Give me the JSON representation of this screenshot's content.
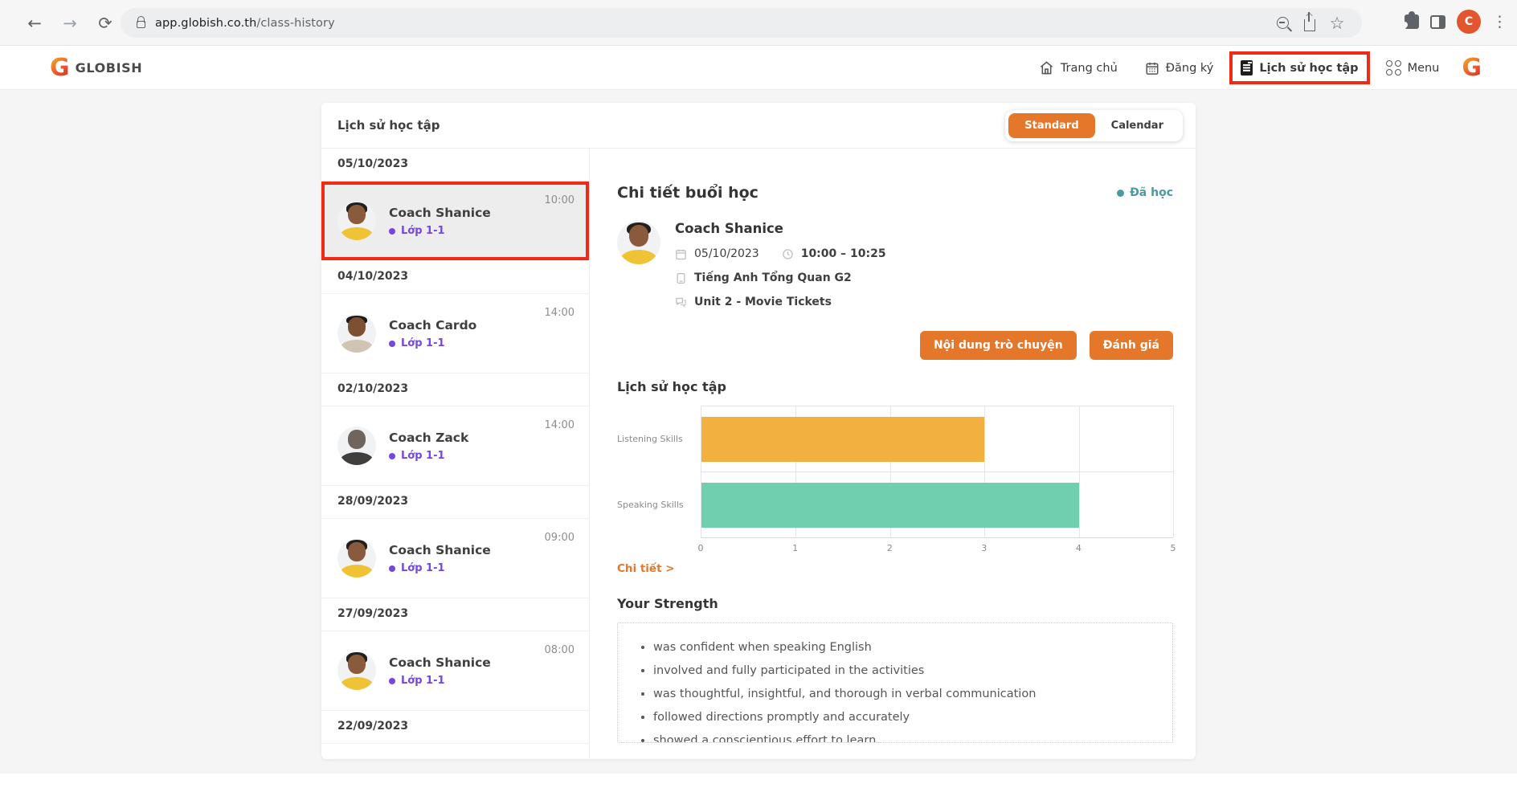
{
  "theme": {
    "accent_orange": "#E5772B",
    "status_teal": "#4A9BA1",
    "class_purple": "#7646E3",
    "annotation_red": "#EE2B16"
  },
  "browser": {
    "url_domain": "app.globish.co.th",
    "url_path": "/class-history",
    "profile_letter": "C",
    "icons": {
      "back": "←",
      "forward": "→",
      "reload": "⟳",
      "bookmark": "☆",
      "overflow": "⋮"
    }
  },
  "header": {
    "brand_mark": "G",
    "brand": "GLOBISH",
    "nav": [
      {
        "label": "Trang chủ"
      },
      {
        "label": "Đăng ký"
      },
      {
        "label": "Lịch sử học tập"
      },
      {
        "label": "Menu"
      }
    ],
    "profile_mark": "G"
  },
  "panel": {
    "title": "Lịch sử học tập",
    "toggle": {
      "standard": "Standard",
      "calendar": "Calendar",
      "selected": "Standard"
    },
    "groups": [
      {
        "date": "05/10/2023",
        "item": {
          "coach": "Coach Shanice",
          "klass": "Lớp 1-1",
          "time": "10:00"
        }
      },
      {
        "date": "04/10/2023",
        "item": {
          "coach": "Coach Cardo",
          "klass": "Lớp 1-1",
          "time": "14:00"
        }
      },
      {
        "date": "02/10/2023",
        "item": {
          "coach": "Coach Zack",
          "klass": "Lớp 1-1",
          "time": "14:00"
        }
      },
      {
        "date": "28/09/2023",
        "item": {
          "coach": "Coach Shanice",
          "klass": "Lớp 1-1",
          "time": "09:00"
        }
      },
      {
        "date": "27/09/2023",
        "item": {
          "coach": "Coach Shanice",
          "klass": "Lớp 1-1",
          "time": "08:00"
        }
      },
      {
        "date": "22/09/2023"
      }
    ]
  },
  "detail": {
    "title": "Chi tiết buổi học",
    "status": "Đã học",
    "coach_name": "Coach Shanice",
    "date": "05/10/2023",
    "time": "10:00 – 10:25",
    "course": "Tiếng Anh Tổng Quan G2",
    "unit": "Unit 2 - Movie Tickets",
    "chat_button": "Nội dung trò chuyện",
    "rating_button": "Đánh giá",
    "history_title": "Lịch sử học tập",
    "detail_link": "Chi tiết >",
    "strength_title": "Your Strength",
    "strengths": [
      "was confident when speaking English",
      "involved and fully participated in the activities",
      "was thoughtful, insightful, and thorough in verbal communication",
      "followed directions promptly and accurately",
      "showed a conscientious effort to learn"
    ]
  },
  "chart_data": {
    "type": "bar",
    "orientation": "horizontal",
    "title": "Lịch sử học tập",
    "categories": [
      "Listening Skills",
      "Speaking Skills"
    ],
    "values": [
      3,
      4
    ],
    "colors": [
      "#F2B13E",
      "#6FCFAF"
    ],
    "xlim": [
      0,
      5
    ],
    "xticks": [
      "0",
      "1",
      "2",
      "3",
      "4",
      "5"
    ],
    "xlabel": "",
    "ylabel": "",
    "grid": true,
    "legend": false
  }
}
